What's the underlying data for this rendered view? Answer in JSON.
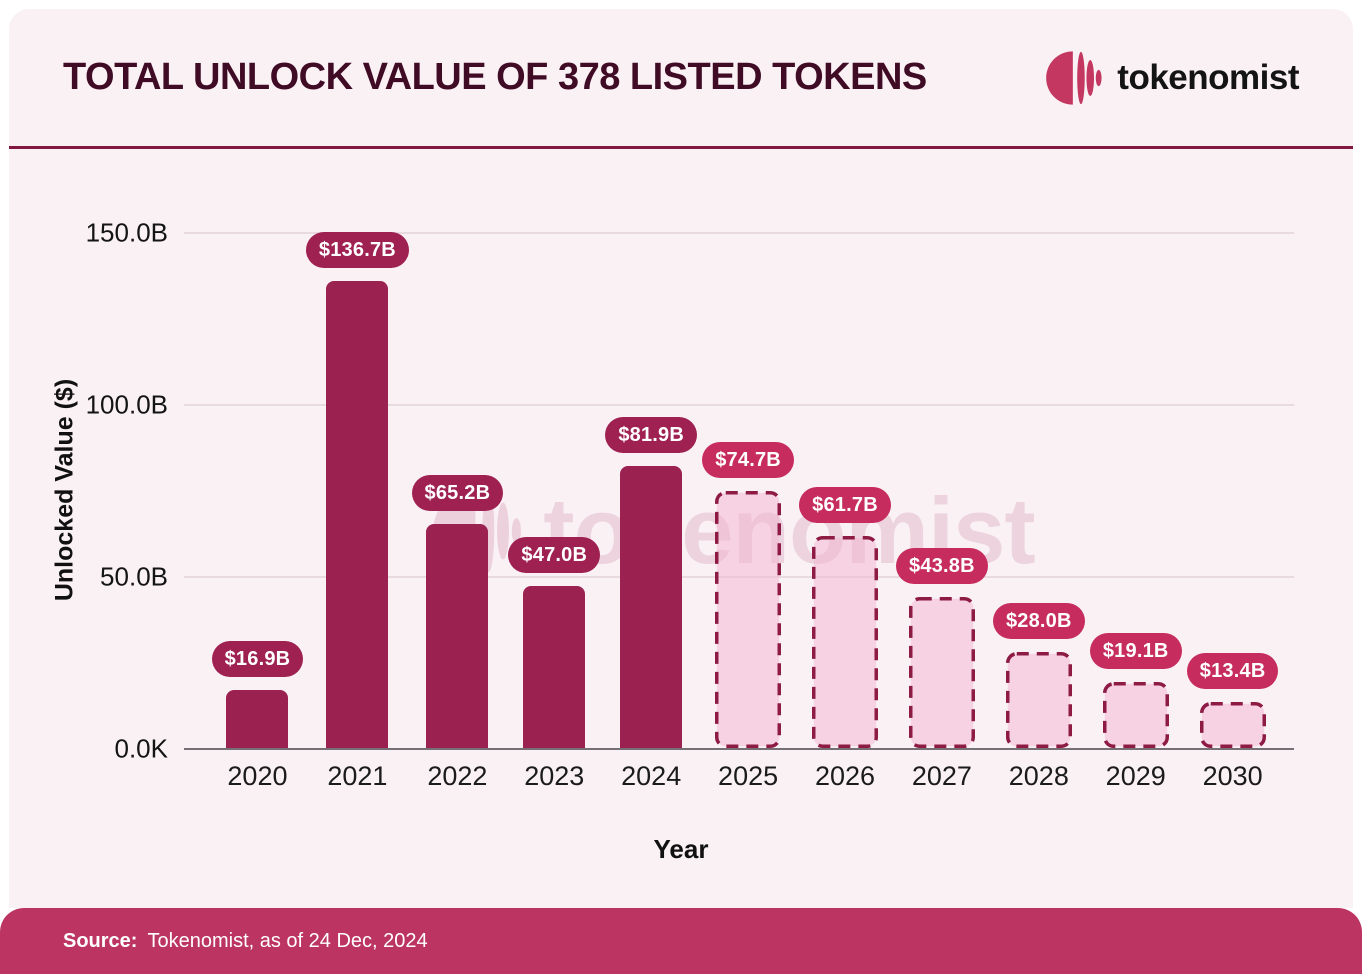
{
  "header": {
    "title": "TOTAL UNLOCK VALUE OF 378 LISTED TOKENS",
    "brand": "tokenomist"
  },
  "watermark": {
    "text": "tokenomist"
  },
  "footer": {
    "source_label": "Source:",
    "source_text": "Tokenomist, as of 24 Dec, 2024"
  },
  "chart_data": {
    "type": "bar",
    "title": "TOTAL UNLOCK VALUE OF 378 LISTED TOKENS",
    "xlabel": "Year",
    "ylabel": "Unlocked Value ($)",
    "unit": "USD billions",
    "ylim": [
      0,
      150
    ],
    "grid": "horizontal",
    "y_ticks": [
      {
        "label": "150.0B",
        "value": 150
      },
      {
        "label": "100.0B",
        "value": 100
      },
      {
        "label": "50.0B",
        "value": 50
      },
      {
        "label": "0.0K",
        "value": 0
      }
    ],
    "categories": [
      "2020",
      "2021",
      "2022",
      "2023",
      "2024",
      "2025",
      "2026",
      "2027",
      "2028",
      "2029",
      "2030"
    ],
    "values": [
      16.9,
      136.7,
      65.2,
      47.0,
      81.9,
      74.7,
      61.7,
      43.8,
      28.0,
      19.1,
      13.4
    ],
    "value_labels": [
      "$16.9B",
      "$136.7B",
      "$65.2B",
      "$47.0B",
      "$81.9B",
      "$74.7B",
      "$61.7B",
      "$43.8B",
      "$28.0B",
      "$19.1B",
      "$13.4B"
    ],
    "projected": [
      false,
      false,
      false,
      false,
      false,
      true,
      true,
      true,
      true,
      true,
      true
    ]
  },
  "colors": {
    "card_bg": "#FAF1F5",
    "bar_solid": "#9B2150",
    "solid_pill": "#9E2152",
    "projected_pill": "#C72C5F",
    "projected_border": "#8D1B43",
    "projected_fill": "rgba(243,184,209,0.55)",
    "footer_bg": "#BC3462",
    "logo_accent": "#C33760",
    "title_color": "#400B24"
  }
}
